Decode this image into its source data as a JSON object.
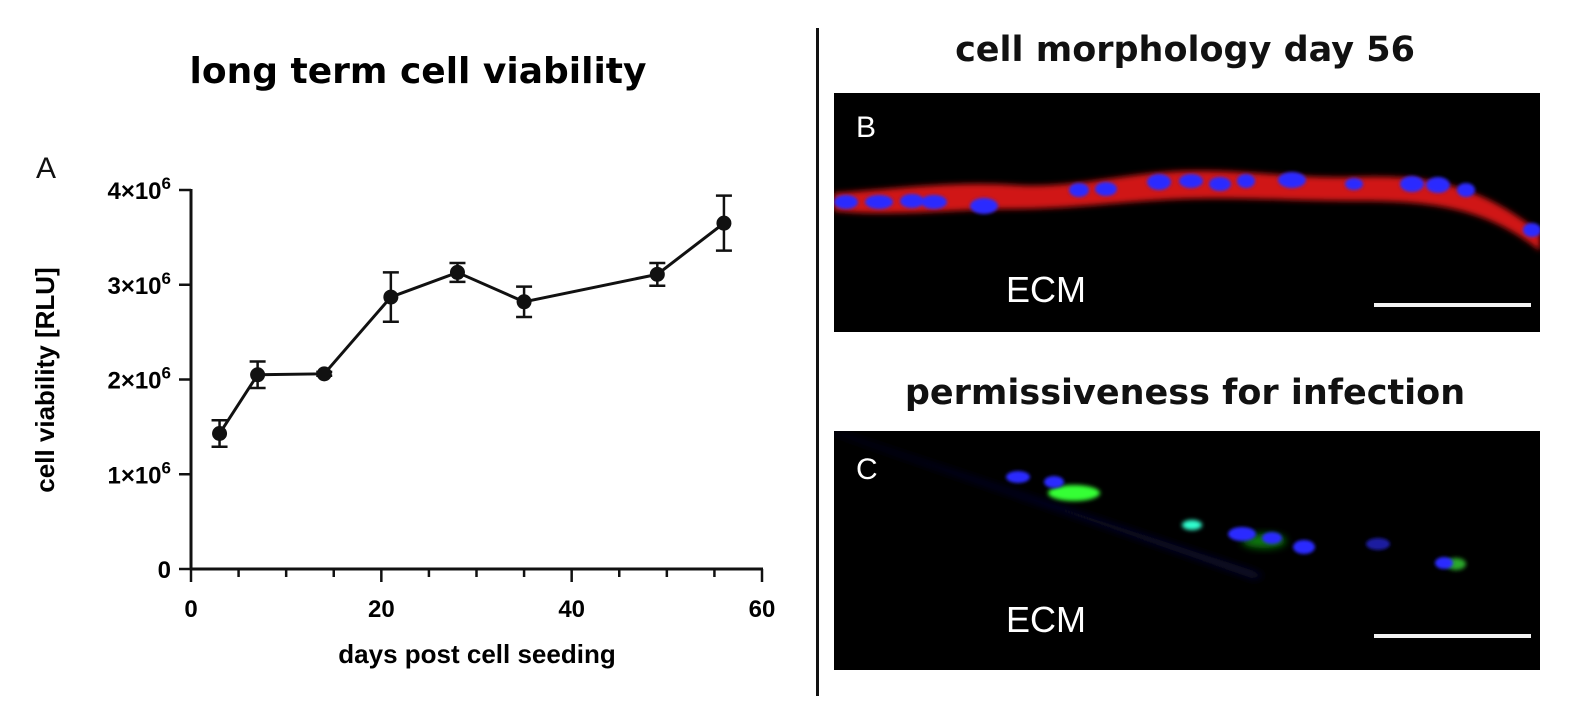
{
  "panelA": {
    "letter": "A",
    "title": "long term cell viability"
  },
  "panelB": {
    "title": "cell morphology day 56",
    "letter": "B",
    "label": "ECM",
    "stain_colors": {
      "membrane": "#e01010",
      "nuclei": "#2a2aff"
    }
  },
  "panelC": {
    "title": "permissiveness for infection",
    "letter": "C",
    "label": "ECM",
    "stain_colors": {
      "infection": "#3cff3c",
      "nuclei": "#2a2aff"
    }
  },
  "chart_data": {
    "type": "line",
    "title": "long term cell viability",
    "xlabel": "days post cell seeding",
    "ylabel": "cell viability [RLU]",
    "xlim": [
      0,
      60
    ],
    "ylim": [
      0,
      4000000
    ],
    "xticks": [
      {
        "value": 0,
        "label": "0"
      },
      {
        "value": 20,
        "label": "20"
      },
      {
        "value": 40,
        "label": "40"
      },
      {
        "value": 60,
        "label": "60"
      }
    ],
    "yticks": [
      {
        "value": 0,
        "label": "0"
      },
      {
        "value": 1000000,
        "label": "1×10",
        "exp": "6"
      },
      {
        "value": 2000000,
        "label": "2×10",
        "exp": "6"
      },
      {
        "value": 3000000,
        "label": "3×10",
        "exp": "6"
      },
      {
        "value": 4000000,
        "label": "4×10",
        "exp": "6"
      }
    ],
    "series": [
      {
        "x": [
          3,
          7,
          14,
          21,
          28,
          35,
          49,
          56
        ],
        "y": [
          1430000,
          2050000,
          2060000,
          2870000,
          3130000,
          2820000,
          3110000,
          3650000
        ],
        "error": [
          140000,
          140000,
          20000,
          260000,
          100000,
          160000,
          120000,
          290000
        ]
      }
    ],
    "grid": false,
    "legend": "none"
  }
}
